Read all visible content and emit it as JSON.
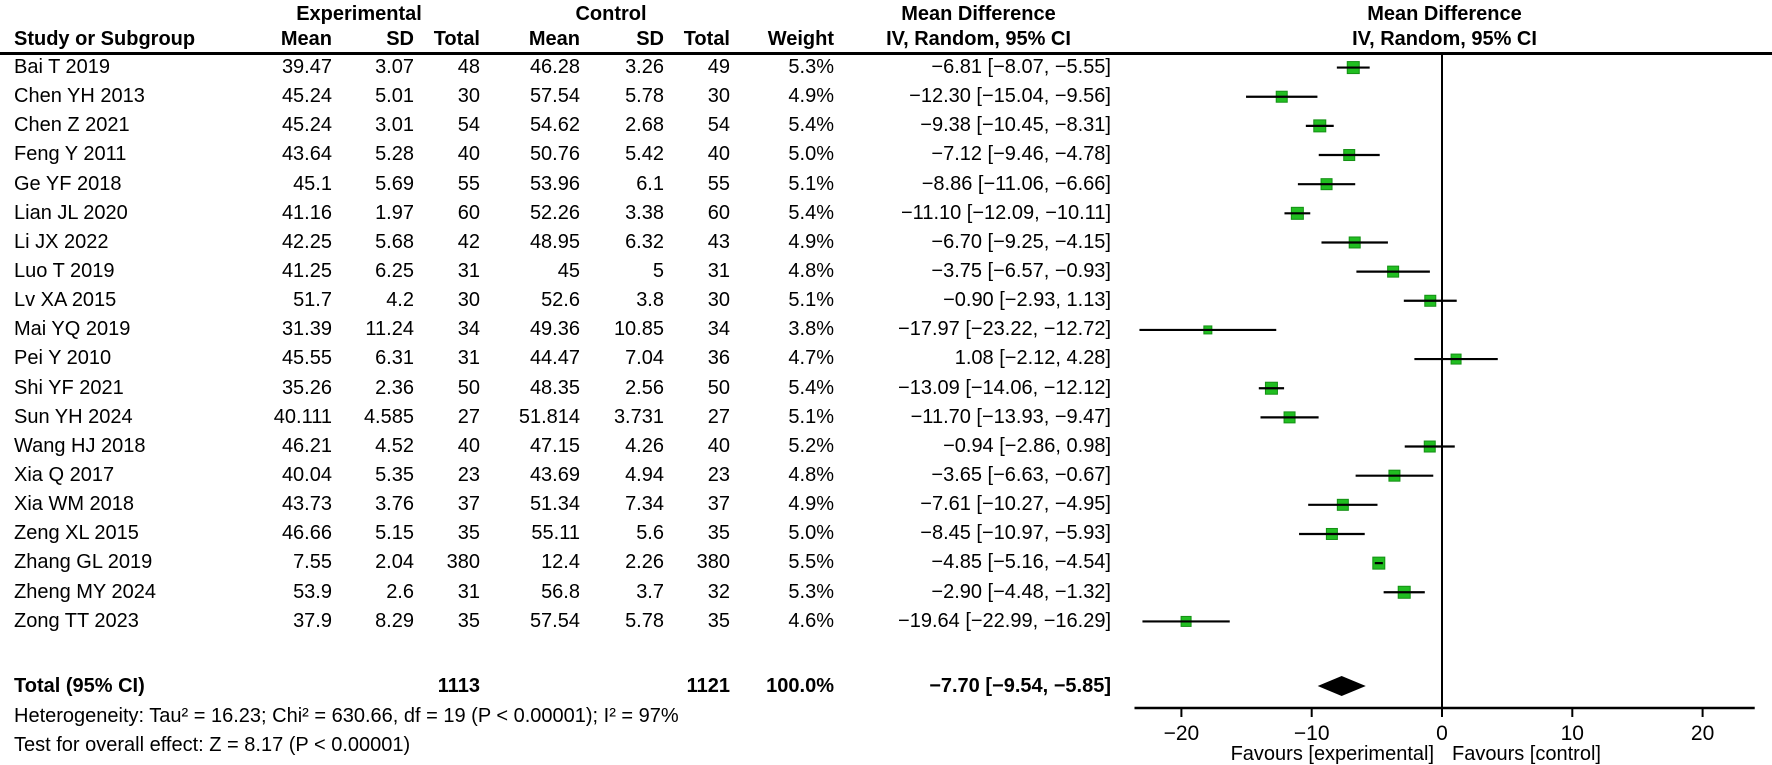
{
  "header": {
    "group_experimental": "Experimental",
    "group_control": "Control",
    "col_study": "Study or Subgroup",
    "col_mean": "Mean",
    "col_sd": "SD",
    "col_total": "Total",
    "col_weight": "Weight",
    "md_label": "Mean Difference",
    "method_label": "IV, Random, 95% CI"
  },
  "chart_data": {
    "type": "forest",
    "effect_measure": "Mean Difference",
    "model": "IV, Random, 95% CI",
    "marker_color": "#21BE21",
    "axis": {
      "ticks": [
        -20,
        -10,
        0,
        10,
        20
      ],
      "xlim": [
        -23.6,
        24.0
      ],
      "favours_left": "Favours [experimental]",
      "favours_right": "Favours [control]"
    },
    "studies": [
      {
        "name": "Bai T 2019",
        "exp_mean": "39.47",
        "exp_sd": "3.07",
        "exp_total": "48",
        "ctl_mean": "46.28",
        "ctl_sd": "3.26",
        "ctl_total": "49",
        "weight": "5.3%",
        "md": -6.81,
        "lo": -8.07,
        "hi": -5.55,
        "ci_label": "−6.81 [−8.07, −5.55]"
      },
      {
        "name": "Chen YH 2013",
        "exp_mean": "45.24",
        "exp_sd": "5.01",
        "exp_total": "30",
        "ctl_mean": "57.54",
        "ctl_sd": "5.78",
        "ctl_total": "30",
        "weight": "4.9%",
        "md": -12.3,
        "lo": -15.04,
        "hi": -9.56,
        "ci_label": "−12.30 [−15.04, −9.56]"
      },
      {
        "name": "Chen Z 2021",
        "exp_mean": "45.24",
        "exp_sd": "3.01",
        "exp_total": "54",
        "ctl_mean": "54.62",
        "ctl_sd": "2.68",
        "ctl_total": "54",
        "weight": "5.4%",
        "md": -9.38,
        "lo": -10.45,
        "hi": -8.31,
        "ci_label": "−9.38 [−10.45, −8.31]"
      },
      {
        "name": "Feng Y 2011",
        "exp_mean": "43.64",
        "exp_sd": "5.28",
        "exp_total": "40",
        "ctl_mean": "50.76",
        "ctl_sd": "5.42",
        "ctl_total": "40",
        "weight": "5.0%",
        "md": -7.12,
        "lo": -9.46,
        "hi": -4.78,
        "ci_label": "−7.12 [−9.46, −4.78]"
      },
      {
        "name": "Ge YF 2018",
        "exp_mean": "45.1",
        "exp_sd": "5.69",
        "exp_total": "55",
        "ctl_mean": "53.96",
        "ctl_sd": "6.1",
        "ctl_total": "55",
        "weight": "5.1%",
        "md": -8.86,
        "lo": -11.06,
        "hi": -6.66,
        "ci_label": "−8.86 [−11.06, −6.66]"
      },
      {
        "name": "Lian JL 2020",
        "exp_mean": "41.16",
        "exp_sd": "1.97",
        "exp_total": "60",
        "ctl_mean": "52.26",
        "ctl_sd": "3.38",
        "ctl_total": "60",
        "weight": "5.4%",
        "md": -11.1,
        "lo": -12.09,
        "hi": -10.11,
        "ci_label": "−11.10 [−12.09, −10.11]"
      },
      {
        "name": "Li JX 2022",
        "exp_mean": "42.25",
        "exp_sd": "5.68",
        "exp_total": "42",
        "ctl_mean": "48.95",
        "ctl_sd": "6.32",
        "ctl_total": "43",
        "weight": "4.9%",
        "md": -6.7,
        "lo": -9.25,
        "hi": -4.15,
        "ci_label": "−6.70 [−9.25, −4.15]"
      },
      {
        "name": "Luo T 2019",
        "exp_mean": "41.25",
        "exp_sd": "6.25",
        "exp_total": "31",
        "ctl_mean": "45",
        "ctl_sd": "5",
        "ctl_total": "31",
        "weight": "4.8%",
        "md": -3.75,
        "lo": -6.57,
        "hi": -0.93,
        "ci_label": "−3.75 [−6.57, −0.93]"
      },
      {
        "name": "Lv XA 2015",
        "exp_mean": "51.7",
        "exp_sd": "4.2",
        "exp_total": "30",
        "ctl_mean": "52.6",
        "ctl_sd": "3.8",
        "ctl_total": "30",
        "weight": "5.1%",
        "md": -0.9,
        "lo": -2.93,
        "hi": 1.13,
        "ci_label": "−0.90 [−2.93, 1.13]"
      },
      {
        "name": "Mai YQ 2019",
        "exp_mean": "31.39",
        "exp_sd": "11.24",
        "exp_total": "34",
        "ctl_mean": "49.36",
        "ctl_sd": "10.85",
        "ctl_total": "34",
        "weight": "3.8%",
        "md": -17.97,
        "lo": -23.22,
        "hi": -12.72,
        "ci_label": "−17.97 [−23.22, −12.72]"
      },
      {
        "name": "Pei Y 2010",
        "exp_mean": "45.55",
        "exp_sd": "6.31",
        "exp_total": "31",
        "ctl_mean": "44.47",
        "ctl_sd": "7.04",
        "ctl_total": "36",
        "weight": "4.7%",
        "md": 1.08,
        "lo": -2.12,
        "hi": 4.28,
        "ci_label": "1.08 [−2.12, 4.28]"
      },
      {
        "name": "Shi YF 2021",
        "exp_mean": "35.26",
        "exp_sd": "2.36",
        "exp_total": "50",
        "ctl_mean": "48.35",
        "ctl_sd": "2.56",
        "ctl_total": "50",
        "weight": "5.4%",
        "md": -13.09,
        "lo": -14.06,
        "hi": -12.12,
        "ci_label": "−13.09 [−14.06, −12.12]"
      },
      {
        "name": "Sun YH 2024",
        "exp_mean": "40.111",
        "exp_sd": "4.585",
        "exp_total": "27",
        "ctl_mean": "51.814",
        "ctl_sd": "3.731",
        "ctl_total": "27",
        "weight": "5.1%",
        "md": -11.7,
        "lo": -13.93,
        "hi": -9.47,
        "ci_label": "−11.70 [−13.93, −9.47]"
      },
      {
        "name": "Wang HJ 2018",
        "exp_mean": "46.21",
        "exp_sd": "4.52",
        "exp_total": "40",
        "ctl_mean": "47.15",
        "ctl_sd": "4.26",
        "ctl_total": "40",
        "weight": "5.2%",
        "md": -0.94,
        "lo": -2.86,
        "hi": 0.98,
        "ci_label": "−0.94 [−2.86, 0.98]"
      },
      {
        "name": "Xia Q 2017",
        "exp_mean": "40.04",
        "exp_sd": "5.35",
        "exp_total": "23",
        "ctl_mean": "43.69",
        "ctl_sd": "4.94",
        "ctl_total": "23",
        "weight": "4.8%",
        "md": -3.65,
        "lo": -6.63,
        "hi": -0.67,
        "ci_label": "−3.65 [−6.63, −0.67]"
      },
      {
        "name": "Xia WM 2018",
        "exp_mean": "43.73",
        "exp_sd": "3.76",
        "exp_total": "37",
        "ctl_mean": "51.34",
        "ctl_sd": "7.34",
        "ctl_total": "37",
        "weight": "4.9%",
        "md": -7.61,
        "lo": -10.27,
        "hi": -4.95,
        "ci_label": "−7.61 [−10.27, −4.95]"
      },
      {
        "name": "Zeng XL 2015",
        "exp_mean": "46.66",
        "exp_sd": "5.15",
        "exp_total": "35",
        "ctl_mean": "55.11",
        "ctl_sd": "5.6",
        "ctl_total": "35",
        "weight": "5.0%",
        "md": -8.45,
        "lo": -10.97,
        "hi": -5.93,
        "ci_label": "−8.45 [−10.97, −5.93]"
      },
      {
        "name": "Zhang GL 2019",
        "exp_mean": "7.55",
        "exp_sd": "2.04",
        "exp_total": "380",
        "ctl_mean": "12.4",
        "ctl_sd": "2.26",
        "ctl_total": "380",
        "weight": "5.5%",
        "md": -4.85,
        "lo": -5.16,
        "hi": -4.54,
        "ci_label": "−4.85 [−5.16, −4.54]"
      },
      {
        "name": "Zheng MY 2024",
        "exp_mean": "53.9",
        "exp_sd": "2.6",
        "exp_total": "31",
        "ctl_mean": "56.8",
        "ctl_sd": "3.7",
        "ctl_total": "32",
        "weight": "5.3%",
        "md": -2.9,
        "lo": -4.48,
        "hi": -1.32,
        "ci_label": "−2.90 [−4.48, −1.32]"
      },
      {
        "name": "Zong TT 2023",
        "exp_mean": "37.9",
        "exp_sd": "8.29",
        "exp_total": "35",
        "ctl_mean": "57.54",
        "ctl_sd": "5.78",
        "ctl_total": "35",
        "weight": "4.6%",
        "md": -19.64,
        "lo": -22.99,
        "hi": -16.29,
        "ci_label": "−19.64 [−22.99, −16.29]"
      }
    ],
    "total": {
      "label": "Total (95% CI)",
      "exp_total": "1113",
      "ctl_total": "1121",
      "weight": "100.0%",
      "md": -7.7,
      "lo": -9.54,
      "hi": -5.85,
      "ci_label": "−7.70 [−9.54, −5.85]"
    }
  },
  "footer": {
    "heterogeneity": "Heterogeneity: Tau² = 16.23; Chi² = 630.66, df = 19 (P < 0.00001); I² = 97%",
    "overall_effect": "Test for overall effect: Z = 8.17 (P < 0.00001)"
  }
}
